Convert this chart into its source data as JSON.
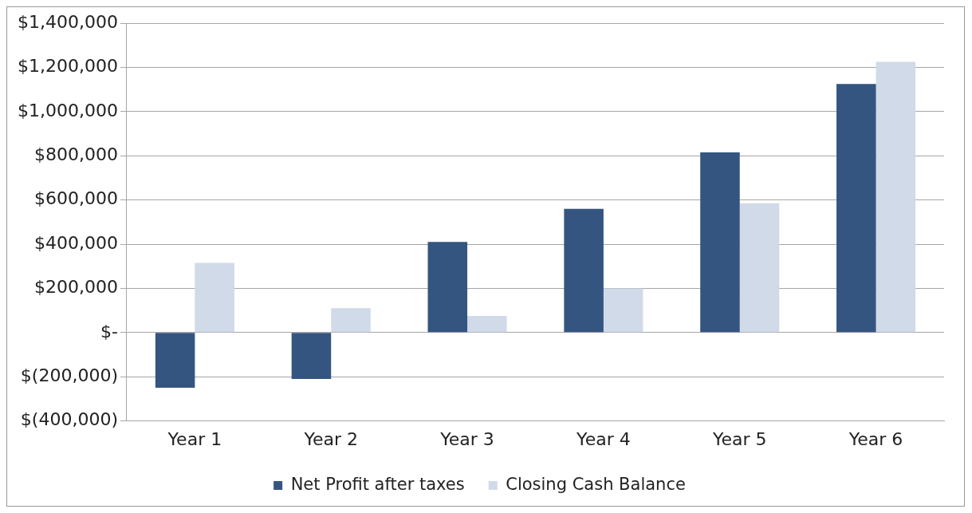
{
  "chart_data": {
    "type": "bar",
    "categories": [
      "Year 1",
      "Year 2",
      "Year 3",
      "Year 4",
      "Year 5",
      "Year 6"
    ],
    "series": [
      {
        "name": "Net Profit after taxes",
        "color": "#355581",
        "values": [
          -250000,
          -210000,
          410000,
          560000,
          815000,
          1125000
        ]
      },
      {
        "name": "Closing Cash Balance",
        "color": "#d0dae8",
        "values": [
          315000,
          110000,
          75000,
          200000,
          585000,
          1225000
        ]
      }
    ],
    "ylim": [
      -400000,
      1400000
    ],
    "yticks": [
      {
        "value": -400000,
        "label": "$(400,000)"
      },
      {
        "value": -200000,
        "label": "$(200,000)"
      },
      {
        "value": 0,
        "label": "$-"
      },
      {
        "value": 200000,
        "label": "$200,000"
      },
      {
        "value": 400000,
        "label": "$400,000"
      },
      {
        "value": 600000,
        "label": "$600,000"
      },
      {
        "value": 800000,
        "label": "$800,000"
      },
      {
        "value": 1000000,
        "label": "$1,000,000"
      },
      {
        "value": 1200000,
        "label": "$1,200,000"
      },
      {
        "value": 1400000,
        "label": "$1,400,000"
      }
    ],
    "grid": "y",
    "legend": "bottom"
  }
}
